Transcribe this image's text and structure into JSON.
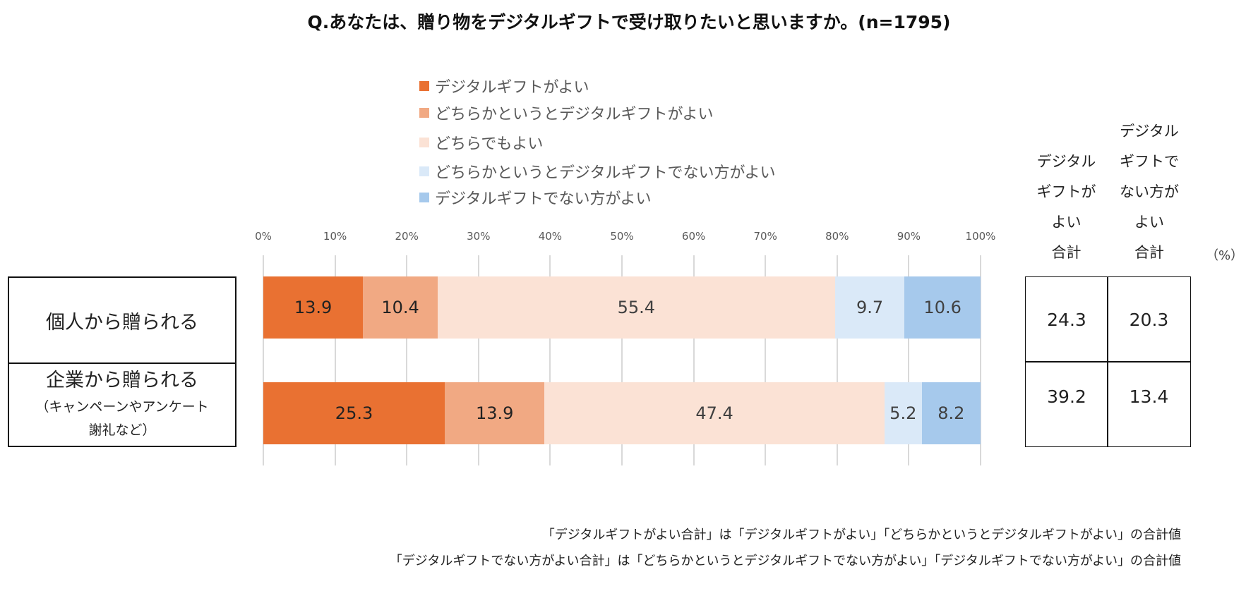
{
  "chart_data": {
    "type": "bar",
    "orientation": "horizontal-stacked-100",
    "title": "Q.あなたは、贈り物をデジタルギフトで受け取りたいと思いますか。(n=1795)",
    "xlim": [
      0,
      100
    ],
    "ticks": [
      "0%",
      "10%",
      "20%",
      "30%",
      "40%",
      "50%",
      "60%",
      "70%",
      "80%",
      "90%",
      "100%"
    ],
    "legend_position": "top",
    "categories": [
      {
        "line1": "個人から贈られる",
        "line2": "",
        "line3": ""
      },
      {
        "line1": "企業から贈られる",
        "line2": "（キャンペーンやアンケート",
        "line3": "謝礼など）"
      }
    ],
    "series": [
      {
        "name": "デジタルギフトがよい",
        "color": "#E97132",
        "values": [
          13.9,
          25.3
        ]
      },
      {
        "name": "どちらかというとデジタルギフトがよい",
        "color": "#F1A983",
        "values": [
          10.4,
          13.9
        ]
      },
      {
        "name": "どちらでもよい",
        "color": "#FBE2D5",
        "values": [
          55.4,
          47.4
        ]
      },
      {
        "name": "どちらかというとデジタルギフトでない方がよい",
        "color": "#DAE9F8",
        "values": [
          9.7,
          5.2
        ]
      },
      {
        "name": "デジタルギフトでない方がよい",
        "color": "#A6C9EC",
        "values": [
          10.6,
          8.2
        ]
      }
    ]
  },
  "summary": {
    "headers": [
      {
        "lines": [
          "",
          "デジタル",
          "ギフトが",
          "よい",
          "合計"
        ]
      },
      {
        "lines": [
          "デジタル",
          "ギフトで",
          "ない方が",
          "よい",
          "合計"
        ]
      }
    ],
    "unit": "（%）",
    "rows": [
      [
        "24.3",
        "20.3"
      ],
      [
        "39.2",
        "13.4"
      ]
    ]
  },
  "footnotes": [
    "「デジタルギフトがよい合計」は「デジタルギフトがよい」「どちらかというとデジタルギフトがよい」の合計値",
    "「デジタルギフトでない方がよい合計」は「どちらかというとデジタルギフトでない方がよい」「デジタルギフトでない方がよい」の合計値"
  ]
}
